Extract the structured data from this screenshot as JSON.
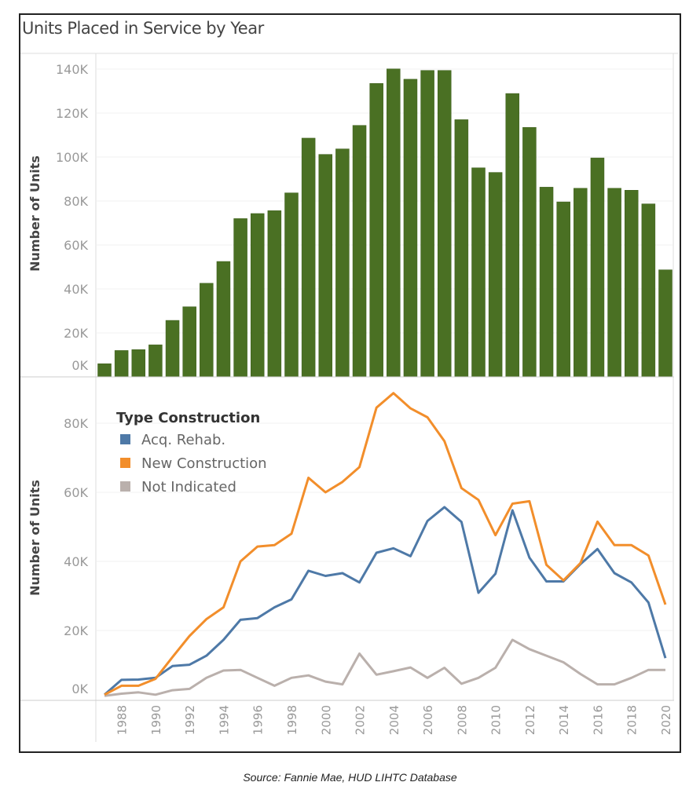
{
  "title": "Units Placed in Service by Year",
  "caption": "Source: Fannie Mae, HUD LIHTC Database",
  "chart_data": [
    {
      "type": "bar",
      "ylabel": "Number of Units",
      "ylim": [
        0,
        140
      ],
      "yticks": [
        "0K",
        "20K",
        "40K",
        "60K",
        "80K",
        "100K",
        "120K",
        "140K"
      ],
      "grid": true,
      "color": "#4a7023",
      "categories": [
        1987,
        1988,
        1989,
        1990,
        1991,
        1992,
        1993,
        1994,
        1995,
        1996,
        1997,
        1998,
        1999,
        2000,
        2001,
        2002,
        2003,
        2004,
        2005,
        2006,
        2007,
        2008,
        2009,
        2010,
        2011,
        2012,
        2013,
        2014,
        2015,
        2016,
        2017,
        2018,
        2019,
        2020
      ],
      "values": [
        6,
        12,
        12.4,
        14.6,
        25.7,
        31.9,
        42.6,
        52.5,
        72,
        74.3,
        75.6,
        83.7,
        108.6,
        101.2,
        103.7,
        114.4,
        133.5,
        140.1,
        135.4,
        139.4,
        139.4,
        117,
        95.1,
        93,
        128.9,
        113.5,
        86.3,
        79.6,
        85.8,
        99.6,
        85.8,
        84.9,
        78.7,
        48.7
      ]
    },
    {
      "type": "line",
      "ylabel": "Number of Units",
      "ylim": [
        0,
        90
      ],
      "yticks": [
        "0K",
        "20K",
        "40K",
        "60K",
        "80K"
      ],
      "xticks": [
        "1988",
        "1990",
        "1992",
        "1994",
        "1996",
        "1998",
        "2000",
        "2002",
        "2004",
        "2006",
        "2008",
        "2010",
        "2012",
        "2014",
        "2016",
        "2018",
        "2020"
      ],
      "grid": true,
      "legend": {
        "title": "Type Construction",
        "placement": "top-left"
      },
      "x": [
        1987,
        1988,
        1989,
        1990,
        1991,
        1992,
        1993,
        1994,
        1995,
        1996,
        1997,
        1998,
        1999,
        2000,
        2001,
        2002,
        2003,
        2004,
        2005,
        2006,
        2007,
        2008,
        2009,
        2010,
        2011,
        2012,
        2013,
        2014,
        2015,
        2016,
        2017,
        2018,
        2019,
        2020
      ],
      "series": [
        {
          "name": "Acq. Rehab.",
          "color": "#4e79a7",
          "values": [
            1.4,
            5.7,
            5.8,
            6.3,
            9.7,
            10.1,
            12.7,
            17.3,
            23.1,
            23.6,
            26.7,
            29,
            37.3,
            35.8,
            36.6,
            33.9,
            42.5,
            43.8,
            41.5,
            51.7,
            55.7,
            51.4,
            30.9,
            36.4,
            54.8,
            41.1,
            34.2,
            34.2,
            39.2,
            43.6,
            36.6,
            33.9,
            28.1,
            12
          ]
        },
        {
          "name": "New Construction",
          "color": "#f28e2b",
          "values": [
            1.4,
            4,
            4,
            6,
            12.3,
            18.4,
            23.3,
            26.7,
            40,
            44.3,
            44.7,
            48,
            64.2,
            60,
            63,
            67.3,
            84.5,
            88.7,
            84.3,
            81.7,
            74.8,
            61.2,
            57.8,
            47.6,
            56.7,
            57.4,
            39,
            34.5,
            39.5,
            51.5,
            44.7,
            44.7,
            41.7,
            27.5
          ]
        },
        {
          "name": "Not Indicated",
          "color": "#bab0ac",
          "values": [
            1.1,
            1.7,
            2.1,
            1.4,
            2.7,
            3.1,
            6.3,
            8.4,
            8.6,
            6.3,
            4,
            6.3,
            7,
            5.2,
            4.4,
            13.3,
            7.2,
            8.2,
            9.3,
            6.3,
            9.2,
            4.6,
            6.3,
            9.2,
            17.3,
            14.6,
            12.7,
            10.8,
            7.4,
            4.4,
            4.4,
            6.3,
            8.6,
            8.6
          ]
        }
      ]
    }
  ]
}
